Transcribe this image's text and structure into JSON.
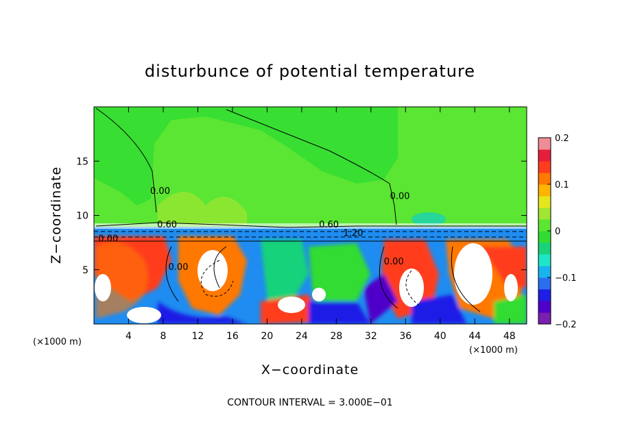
{
  "chart_data": {
    "type": "heatmap",
    "title": "disturbunce of potential temperature",
    "xlabel": "X−coordinate",
    "ylabel": "Z−coordinate",
    "x_unit": "(×1000 m)",
    "x_unit_right": "(×1000 m)",
    "xlim": [
      0,
      50
    ],
    "ylim": [
      0,
      20
    ],
    "x_ticks": [
      4,
      8,
      12,
      16,
      20,
      24,
      28,
      32,
      36,
      40,
      44,
      48
    ],
    "y_ticks": [
      5,
      10,
      15
    ],
    "colorbar": {
      "min": -0.2,
      "max": 0.2,
      "ticks": [
        0.2,
        0.1,
        0,
        -0.1,
        -0.2
      ],
      "tick_labels": [
        "0.2",
        "0.1",
        "0",
        "−0.1",
        "−0.2"
      ],
      "colors": [
        "#7a1fb0",
        "#5000c8",
        "#1e1ee6",
        "#2a6ef0",
        "#19b4f0",
        "#1ee6c8",
        "#19d27a",
        "#32dc32",
        "#5ae632",
        "#a0e632",
        "#e6e61e",
        "#ffb400",
        "#ff7800",
        "#ff3c1e",
        "#e61e3c",
        "#f08c96"
      ]
    },
    "contour_labels": [
      {
        "text": "0.00",
        "x": 6.5,
        "z": 12.0
      },
      {
        "text": "0.00",
        "x": 34.2,
        "z": 11.5
      },
      {
        "text": "0.00",
        "x": 0.5,
        "z": 7.6
      },
      {
        "text": "0.00",
        "x": 8.6,
        "z": 5.0
      },
      {
        "text": "0.00",
        "x": 33.5,
        "z": 5.5
      },
      {
        "text": "0.60",
        "x": 26.0,
        "z": 8.9
      },
      {
        "text": "1.20",
        "x": 28.8,
        "z": 8.1
      },
      {
        "text": "0.60",
        "x": 7.3,
        "z": 8.9
      }
    ],
    "contour_interval_text": "CONTOUR INTERVAL = 3.000E−01"
  }
}
